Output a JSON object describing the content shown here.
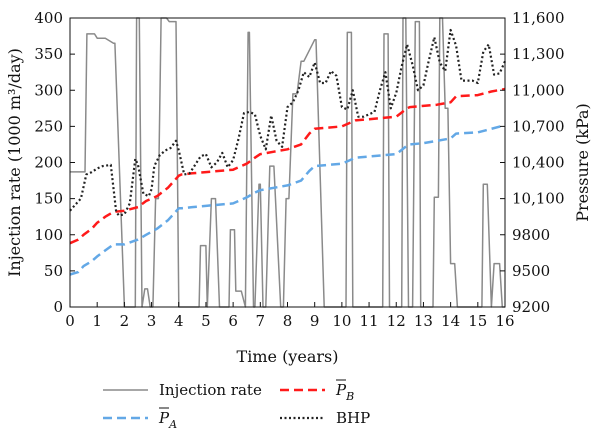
{
  "chart_data": {
    "type": "line",
    "xlabel": "Time (years)",
    "ylabel_left": "Injection rate (1000 m³/day)",
    "ylabel_right": "Pressure (kPa)",
    "xlim": [
      0,
      16
    ],
    "ylim_left": [
      0,
      400
    ],
    "ylim_right": [
      9200,
      11600
    ],
    "x_ticks": [
      "0",
      "1",
      "2",
      "3",
      "4",
      "5",
      "6",
      "7",
      "8",
      "9",
      "10",
      "11",
      "12",
      "13",
      "14",
      "15",
      "16"
    ],
    "y_left_ticks": [
      "0",
      "50",
      "100",
      "150",
      "200",
      "250",
      "300",
      "350",
      "400"
    ],
    "y_right_ticks": [
      "9200",
      "9500",
      "9800",
      "10,100",
      "10,400",
      "10,700",
      "11,000",
      "11,300",
      "11,600"
    ],
    "colors": {
      "injection": "#8a8a8a",
      "pa": "#63a8e6",
      "pb": "#ff1a1a",
      "bhp": "#222222"
    },
    "legend": [
      {
        "key": "injection",
        "label": "Injection rate"
      },
      {
        "key": "pb",
        "label": "P",
        "sub": "B"
      },
      {
        "key": "pa",
        "label": "P",
        "sub": "A"
      },
      {
        "key": "bhp",
        "label": "BHP"
      }
    ],
    "series": [
      {
        "key": "injection",
        "axis": "left",
        "x": [
          0,
          0.55,
          0.62,
          0.9,
          1.0,
          1.3,
          1.6,
          1.65,
          2.0,
          2.05,
          2.05,
          2.1,
          2.2,
          2.25,
          2.4,
          2.45,
          2.55,
          2.65,
          2.75,
          2.85,
          2.95,
          3.05,
          3.15,
          3.25,
          3.35,
          3.55,
          3.65,
          3.9,
          4.0,
          4.05,
          4.25,
          4.75,
          4.8,
          5.0,
          5.05,
          5.2,
          5.35,
          5.5,
          5.85,
          5.9,
          6.05,
          6.1,
          6.3,
          6.45,
          6.55,
          6.6,
          6.75,
          6.8,
          6.95,
          7.0,
          7.1,
          7.2,
          7.35,
          7.5,
          7.75,
          7.85,
          7.95,
          8.05,
          8.2,
          8.35,
          8.5,
          8.6,
          9.0,
          9.05,
          9.35,
          9.4,
          10.15,
          10.2,
          10.35,
          10.4,
          10.55,
          10.6,
          11.2,
          11.3,
          11.5,
          11.55,
          11.7,
          11.75,
          12.15,
          12.2,
          12.25,
          12.35,
          12.45,
          12.55,
          12.6,
          12.7,
          12.85,
          12.9,
          13.35,
          13.4,
          13.55,
          13.6,
          13.7,
          13.8,
          13.9,
          14.0,
          14.15,
          14.25,
          14.3,
          14.7,
          14.9,
          15.15,
          15.2,
          15.35,
          15.5,
          15.6,
          15.8,
          15.9,
          16.0
        ],
        "values": [
          187,
          187,
          378,
          378,
          372,
          372,
          365,
          365,
          0,
          0,
          0,
          0,
          0,
          0,
          0,
          400,
          400,
          0,
          25,
          25,
          0,
          0,
          150,
          150,
          400,
          400,
          395,
          395,
          0,
          0,
          0,
          0,
          85,
          85,
          0,
          150,
          150,
          0,
          0,
          107,
          107,
          22,
          22,
          0,
          380,
          380,
          0,
          0,
          170,
          170,
          0,
          0,
          195,
          195,
          0,
          0,
          150,
          150,
          295,
          295,
          340,
          340,
          370,
          370,
          0,
          0,
          0,
          380,
          380,
          0,
          0,
          0,
          0,
          0,
          0,
          378,
          378,
          0,
          0,
          0,
          400,
          400,
          0,
          0,
          0,
          395,
          395,
          0,
          0,
          152,
          152,
          400,
          400,
          275,
          275,
          60,
          60,
          0,
          0,
          0,
          0,
          0,
          170,
          170,
          0,
          60,
          60,
          0,
          0
        ]
      },
      {
        "key": "pa",
        "axis": "right",
        "x": [
          0,
          0.3,
          0.5,
          0.8,
          1.0,
          1.3,
          1.6,
          2.0,
          2.5,
          2.8,
          3.2,
          3.6,
          4.0,
          4.1,
          4.5,
          5.0,
          5.5,
          6.0,
          6.5,
          6.8,
          7.0,
          7.5,
          8.0,
          8.5,
          8.8,
          9.0,
          9.5,
          10.0,
          10.4,
          10.5,
          11.0,
          11.5,
          12.0,
          12.4,
          12.5,
          13.0,
          13.5,
          14.0,
          14.2,
          15.0,
          15.5,
          16.0
        ],
        "values": [
          9470,
          9490,
          9540,
          9580,
          9620,
          9670,
          9720,
          9720,
          9760,
          9800,
          9850,
          9920,
          10020,
          10020,
          10030,
          10040,
          10050,
          10060,
          10110,
          10150,
          10170,
          10190,
          10210,
          10250,
          10330,
          10370,
          10380,
          10390,
          10430,
          10440,
          10450,
          10460,
          10470,
          10540,
          10550,
          10560,
          10580,
          10600,
          10640,
          10650,
          10680,
          10710
        ]
      },
      {
        "key": "pb",
        "axis": "right",
        "x": [
          0,
          0.3,
          0.5,
          0.8,
          1.0,
          1.3,
          1.6,
          2.0,
          2.5,
          2.8,
          3.2,
          3.6,
          4.0,
          4.1,
          4.5,
          5.0,
          5.5,
          6.0,
          6.5,
          6.8,
          7.0,
          7.5,
          8.0,
          8.5,
          8.8,
          9.0,
          9.5,
          10.0,
          10.4,
          10.5,
          11.0,
          11.5,
          12.0,
          12.4,
          12.5,
          13.0,
          13.5,
          14.0,
          14.2,
          15.0,
          15.5,
          16.0
        ],
        "values": [
          9730,
          9760,
          9800,
          9850,
          9900,
          9950,
          9990,
          10000,
          10030,
          10080,
          10120,
          10190,
          10290,
          10300,
          10310,
          10320,
          10330,
          10340,
          10390,
          10440,
          10470,
          10490,
          10510,
          10550,
          10640,
          10680,
          10690,
          10700,
          10740,
          10750,
          10760,
          10770,
          10780,
          10850,
          10860,
          10870,
          10880,
          10900,
          10950,
          10960,
          10990,
          11010
        ]
      },
      {
        "key": "bhp",
        "axis": "right",
        "x": [
          0,
          0.2,
          0.4,
          0.6,
          0.8,
          1.0,
          1.2,
          1.5,
          1.7,
          1.8,
          2.0,
          2.2,
          2.4,
          2.5,
          2.7,
          2.9,
          3.0,
          3.1,
          3.3,
          3.5,
          3.7,
          3.9,
          4.0,
          4.2,
          4.4,
          4.6,
          4.8,
          5.0,
          5.2,
          5.4,
          5.6,
          5.8,
          6.0,
          6.2,
          6.4,
          6.6,
          6.8,
          7.0,
          7.2,
          7.4,
          7.6,
          7.8,
          8.0,
          8.2,
          8.4,
          8.6,
          8.8,
          9.0,
          9.2,
          9.4,
          9.6,
          9.8,
          10.0,
          10.2,
          10.4,
          10.6,
          10.8,
          11.0,
          11.2,
          11.4,
          11.6,
          11.8,
          12.0,
          12.2,
          12.4,
          12.6,
          12.8,
          13.0,
          13.2,
          13.4,
          13.6,
          13.8,
          14.0,
          14.2,
          14.4,
          14.6,
          14.8,
          15.0,
          15.2,
          15.4,
          15.6,
          15.8,
          16.0
        ],
        "values": [
          10000,
          10050,
          10100,
          10300,
          10320,
          10350,
          10370,
          10380,
          9990,
          9960,
          9970,
          10060,
          10430,
          10380,
          10140,
          10120,
          10180,
          10370,
          10460,
          10500,
          10520,
          10580,
          10500,
          10300,
          10310,
          10380,
          10450,
          10470,
          10360,
          10400,
          10480,
          10360,
          10420,
          10600,
          10810,
          10820,
          10800,
          10620,
          10510,
          10790,
          10580,
          10530,
          10860,
          10900,
          11000,
          11150,
          11110,
          11230,
          11060,
          11060,
          11160,
          11120,
          10860,
          10840,
          11000,
          10780,
          10780,
          10800,
          10820,
          11000,
          11150,
          10850,
          10980,
          11200,
          11380,
          11210,
          11000,
          11040,
          11250,
          11440,
          11230,
          11160,
          11500,
          11370,
          11080,
          11080,
          11080,
          11060,
          11320,
          11380,
          11130,
          11140,
          11240
        ]
      }
    ]
  }
}
